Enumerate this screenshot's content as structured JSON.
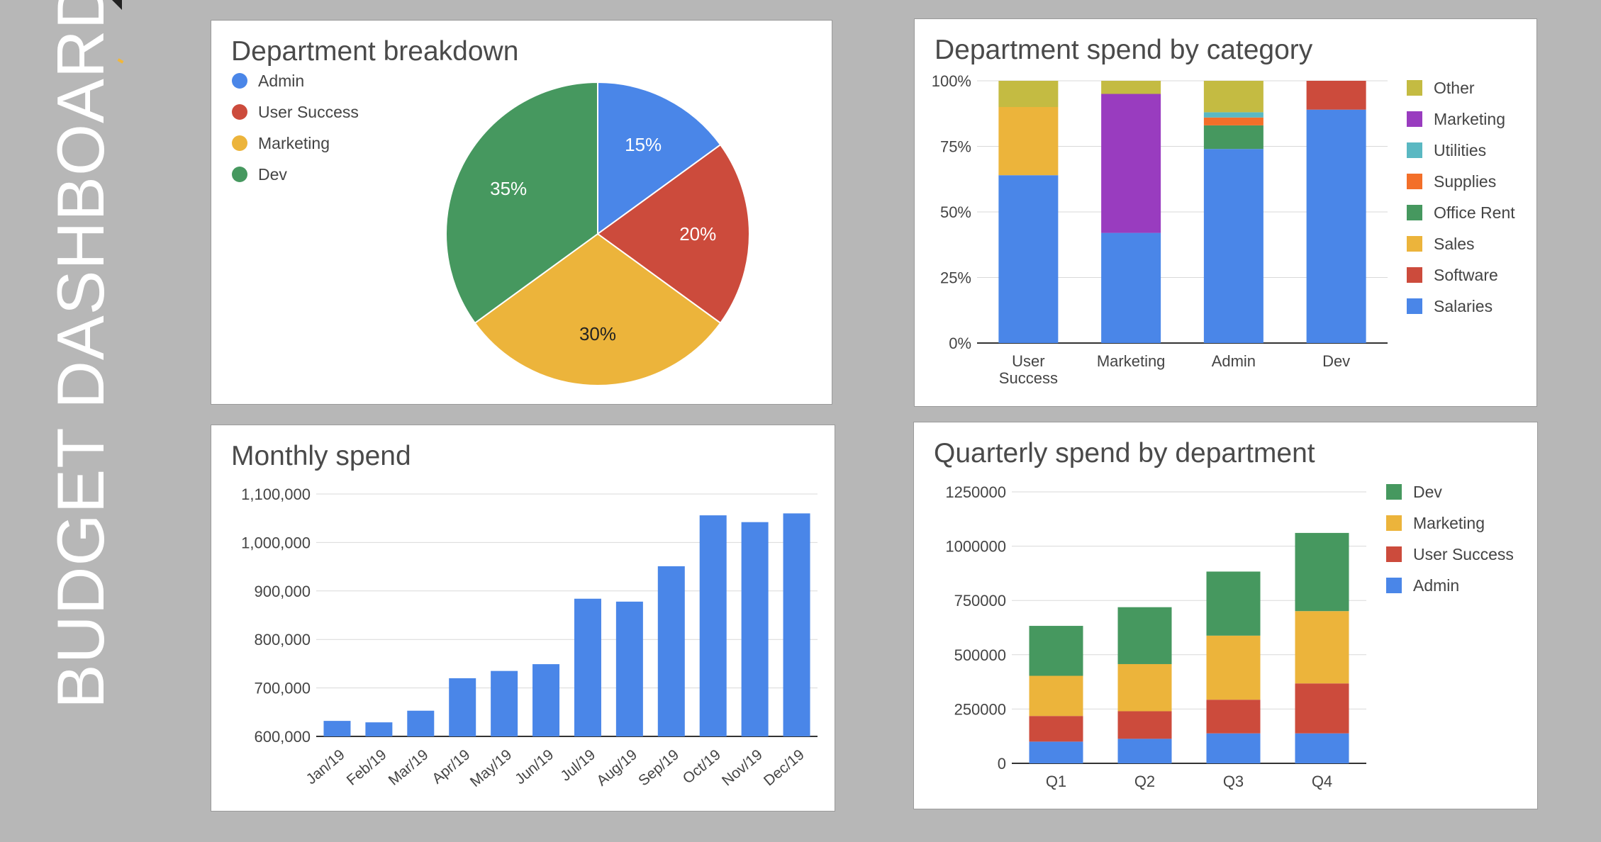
{
  "sidebar": {
    "title": "BUDGET DASHBOARD"
  },
  "colors": {
    "blue": "#4a86e8",
    "red": "#cc4b3c",
    "yellow": "#ecb43b",
    "green": "#46985f",
    "purple": "#993cbf",
    "teal": "#5ab8c2",
    "orange": "#f36f29",
    "olive": "#c4bb42",
    "grid": "#d9d9d9",
    "axis": "#333333",
    "text": "#444444"
  },
  "chart_data": [
    {
      "id": "pie",
      "type": "pie",
      "title": "Department breakdown",
      "legend_position": "top-left",
      "labels": [
        "Admin",
        "User Success",
        "Marketing",
        "Dev"
      ],
      "values": [
        15,
        20,
        30,
        35
      ],
      "value_labels": [
        "15%",
        "20%",
        "30%",
        "35%"
      ],
      "colors": [
        "#4a86e8",
        "#cc4b3c",
        "#ecb43b",
        "#46985f"
      ]
    },
    {
      "id": "category",
      "type": "bar",
      "stacked": "percent",
      "title": "Department spend by category",
      "legend_position": "right",
      "categories": [
        "User Success",
        "Marketing",
        "Admin",
        "Dev"
      ],
      "category_lines": [
        [
          "User",
          "Success"
        ],
        [
          "Marketing"
        ],
        [
          "Admin"
        ],
        [
          "Dev"
        ]
      ],
      "yticks": [
        "0%",
        "25%",
        "50%",
        "75%",
        "100%"
      ],
      "ylim": [
        0,
        100
      ],
      "legend_order": [
        "Other",
        "Marketing",
        "Utilities",
        "Supplies",
        "Office Rent",
        "Sales",
        "Software",
        "Salaries"
      ],
      "series": [
        {
          "name": "Salaries",
          "color": "#4a86e8",
          "values": [
            64,
            42,
            74,
            89
          ]
        },
        {
          "name": "Software",
          "color": "#cc4b3c",
          "values": [
            0,
            0,
            0,
            11
          ]
        },
        {
          "name": "Sales",
          "color": "#ecb43b",
          "values": [
            26,
            0,
            0,
            0
          ]
        },
        {
          "name": "Office Rent",
          "color": "#46985f",
          "values": [
            0,
            0,
            9,
            0
          ]
        },
        {
          "name": "Supplies",
          "color": "#f36f29",
          "values": [
            0,
            0,
            3,
            0
          ]
        },
        {
          "name": "Utilities",
          "color": "#5ab8c2",
          "values": [
            0,
            0,
            2,
            0
          ]
        },
        {
          "name": "Marketing",
          "color": "#993cbf",
          "values": [
            0,
            53,
            0,
            0
          ]
        },
        {
          "name": "Other",
          "color": "#c4bb42",
          "values": [
            10,
            5,
            12,
            0
          ]
        }
      ]
    },
    {
      "id": "monthly",
      "type": "bar",
      "title": "Monthly spend",
      "categories": [
        "Jan/19",
        "Feb/19",
        "Mar/19",
        "Apr/19",
        "May/19",
        "Jun/19",
        "Jul/19",
        "Aug/19",
        "Sep/19",
        "Oct/19",
        "Nov/19",
        "Dec/19"
      ],
      "values": [
        632000,
        629000,
        653000,
        720000,
        735000,
        749000,
        884000,
        878000,
        951000,
        1056000,
        1042000,
        1060000
      ],
      "ylim": [
        600000,
        1100000
      ],
      "yticks": [
        "600,000",
        "700,000",
        "800,000",
        "900,000",
        "1,000,000",
        "1,100,000"
      ],
      "color": "#4a86e8"
    },
    {
      "id": "quarterly",
      "type": "bar",
      "stacked": true,
      "title": "Quarterly spend by department",
      "legend_position": "right",
      "categories": [
        "Q1",
        "Q2",
        "Q3",
        "Q4"
      ],
      "ylim": [
        0,
        1250000
      ],
      "yticks": [
        "0",
        "250000",
        "500000",
        "750000",
        "1000000",
        "1250000"
      ],
      "legend_order": [
        "Dev",
        "Marketing",
        "User Success",
        "Admin"
      ],
      "series": [
        {
          "name": "Admin",
          "color": "#4a86e8",
          "values": [
            100000,
            113000,
            138000,
            138000
          ]
        },
        {
          "name": "User Success",
          "color": "#cc4b3c",
          "values": [
            118000,
            127000,
            155000,
            230000
          ]
        },
        {
          "name": "Marketing",
          "color": "#ecb43b",
          "values": [
            185000,
            217000,
            295000,
            333000
          ]
        },
        {
          "name": "Dev",
          "color": "#46985f",
          "values": [
            230000,
            262000,
            295000,
            360000
          ]
        }
      ]
    }
  ]
}
